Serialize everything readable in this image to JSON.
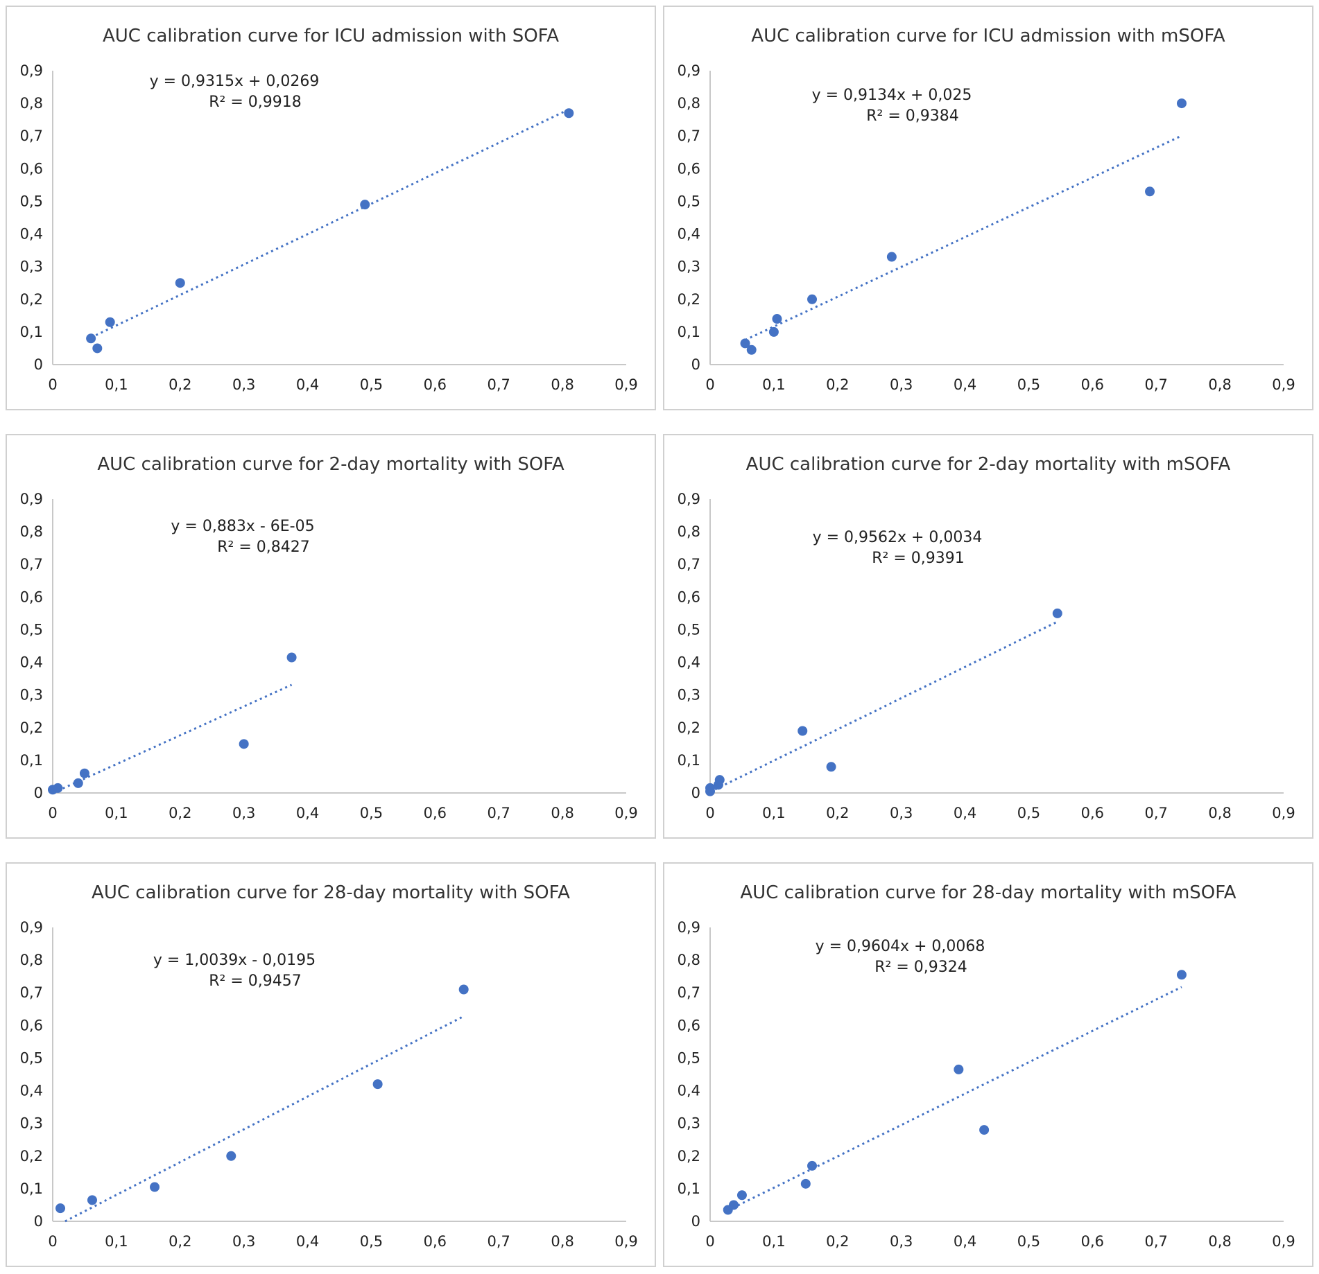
{
  "colors": {
    "marker": "#4472c4",
    "trend": "#4472c4",
    "axis": "#c8c8c8",
    "border": "#d0d0d0"
  },
  "chart_data": [
    {
      "type": "scatter",
      "title": "AUC calibration curve for ICU admission with SOFA",
      "equation": "y = 0,9315x + 0,0269",
      "r_squared": "R² = 0,9918",
      "xlim": [
        0,
        0.9
      ],
      "ylim": [
        0,
        0.9
      ],
      "x_ticks": [
        "0",
        "0,1",
        "0,2",
        "0,3",
        "0,4",
        "0,5",
        "0,6",
        "0,7",
        "0,8",
        "0,9"
      ],
      "y_ticks": [
        "0",
        "0,1",
        "0,2",
        "0,3",
        "0,4",
        "0,5",
        "0,6",
        "0,7",
        "0,8",
        "0,9"
      ],
      "trendline": {
        "slope": 0.9315,
        "intercept": 0.0269,
        "x_range": [
          0.06,
          0.81
        ]
      },
      "points": [
        {
          "x": 0.06,
          "y": 0.08
        },
        {
          "x": 0.07,
          "y": 0.05
        },
        {
          "x": 0.09,
          "y": 0.13
        },
        {
          "x": 0.2,
          "y": 0.25
        },
        {
          "x": 0.49,
          "y": 0.49
        },
        {
          "x": 0.81,
          "y": 0.77
        }
      ]
    },
    {
      "type": "scatter",
      "title": "AUC calibration curve for ICU admission with mSOFA",
      "equation": "y = 0,9134x + 0,025",
      "r_squared": "R² = 0,9384",
      "xlim": [
        0,
        0.9
      ],
      "ylim": [
        0,
        0.9
      ],
      "x_ticks": [
        "0",
        "0,1",
        "0,2",
        "0,3",
        "0,4",
        "0,5",
        "0,6",
        "0,7",
        "0,8",
        "0,9"
      ],
      "y_ticks": [
        "0",
        "0,1",
        "0,2",
        "0,3",
        "0,4",
        "0,5",
        "0,6",
        "0,7",
        "0,8",
        "0,9"
      ],
      "trendline": {
        "slope": 0.9134,
        "intercept": 0.025,
        "x_range": [
          0.055,
          0.74
        ]
      },
      "points": [
        {
          "x": 0.055,
          "y": 0.065
        },
        {
          "x": 0.065,
          "y": 0.045
        },
        {
          "x": 0.1,
          "y": 0.1
        },
        {
          "x": 0.105,
          "y": 0.14
        },
        {
          "x": 0.16,
          "y": 0.2
        },
        {
          "x": 0.285,
          "y": 0.33
        },
        {
          "x": 0.69,
          "y": 0.53
        },
        {
          "x": 0.74,
          "y": 0.8
        }
      ]
    },
    {
      "type": "scatter",
      "title": "AUC calibration curve for 2-day mortality with SOFA",
      "equation": "y = 0,883x - 6E-05",
      "r_squared": "R² = 0,8427",
      "xlim": [
        0,
        0.9
      ],
      "ylim": [
        0,
        0.9
      ],
      "x_ticks": [
        "0",
        "0,1",
        "0,2",
        "0,3",
        "0,4",
        "0,5",
        "0,6",
        "0,7",
        "0,8",
        "0,9"
      ],
      "y_ticks": [
        "0",
        "0,1",
        "0,2",
        "0,3",
        "0,4",
        "0,5",
        "0,6",
        "0,7",
        "0,8",
        "0,9"
      ],
      "trendline": {
        "slope": 0.883,
        "intercept": -6e-05,
        "x_range": [
          0,
          0.375
        ]
      },
      "points": [
        {
          "x": 0.0,
          "y": 0.01
        },
        {
          "x": 0.008,
          "y": 0.015
        },
        {
          "x": 0.04,
          "y": 0.03
        },
        {
          "x": 0.05,
          "y": 0.06
        },
        {
          "x": 0.3,
          "y": 0.15
        },
        {
          "x": 0.375,
          "y": 0.415
        }
      ]
    },
    {
      "type": "scatter",
      "title": "AUC calibration curve for 2-day mortality with mSOFA",
      "equation": "y = 0,9562x + 0,0034",
      "r_squared": "R² = 0,9391",
      "xlim": [
        0,
        0.9
      ],
      "ylim": [
        0,
        0.9
      ],
      "x_ticks": [
        "0",
        "0,1",
        "0,2",
        "0,3",
        "0,4",
        "0,5",
        "0,6",
        "0,7",
        "0,8",
        "0,9"
      ],
      "y_ticks": [
        "0",
        "0,1",
        "0,2",
        "0,3",
        "0,4",
        "0,5",
        "0,6",
        "0,7",
        "0,8",
        "0,9"
      ],
      "trendline": {
        "slope": 0.9562,
        "intercept": 0.0034,
        "x_range": [
          0,
          0.545
        ]
      },
      "points": [
        {
          "x": 0.0,
          "y": 0.005
        },
        {
          "x": 0.0,
          "y": 0.015
        },
        {
          "x": 0.013,
          "y": 0.025
        },
        {
          "x": 0.015,
          "y": 0.04
        },
        {
          "x": 0.145,
          "y": 0.19
        },
        {
          "x": 0.19,
          "y": 0.08
        },
        {
          "x": 0.545,
          "y": 0.55
        }
      ]
    },
    {
      "type": "scatter",
      "title": "AUC calibration curve for 28-day mortality with SOFA",
      "equation": "y = 1,0039x - 0,0195",
      "r_squared": "R² = 0,9457",
      "xlim": [
        0,
        0.9
      ],
      "ylim": [
        0,
        0.9
      ],
      "x_ticks": [
        "0",
        "0,1",
        "0,2",
        "0,3",
        "0,4",
        "0,5",
        "0,6",
        "0,7",
        "0,8",
        "0,9"
      ],
      "y_ticks": [
        "0",
        "0,1",
        "0,2",
        "0,3",
        "0,4",
        "0,5",
        "0,6",
        "0,7",
        "0,8",
        "0,9"
      ],
      "trendline": {
        "slope": 1.0039,
        "intercept": -0.0195,
        "x_range": [
          0.0195,
          0.645
        ]
      },
      "points": [
        {
          "x": 0.012,
          "y": 0.04
        },
        {
          "x": 0.062,
          "y": 0.065
        },
        {
          "x": 0.16,
          "y": 0.105
        },
        {
          "x": 0.28,
          "y": 0.2
        },
        {
          "x": 0.51,
          "y": 0.42
        },
        {
          "x": 0.645,
          "y": 0.71
        }
      ]
    },
    {
      "type": "scatter",
      "title": "AUC calibration curve for 28-day mortality with mSOFA",
      "equation": "y = 0,9604x + 0,0068",
      "r_squared": "R² = 0,9324",
      "xlim": [
        0,
        0.9
      ],
      "ylim": [
        0,
        0.9
      ],
      "x_ticks": [
        "0",
        "0,1",
        "0,2",
        "0,3",
        "0,4",
        "0,5",
        "0,6",
        "0,7",
        "0,8",
        "0,9"
      ],
      "y_ticks": [
        "0",
        "0,1",
        "0,2",
        "0,3",
        "0,4",
        "0,5",
        "0,6",
        "0,7",
        "0,8",
        "0,9"
      ],
      "trendline": {
        "slope": 0.9604,
        "intercept": 0.0068,
        "x_range": [
          0.028,
          0.74
        ]
      },
      "points": [
        {
          "x": 0.028,
          "y": 0.035
        },
        {
          "x": 0.037,
          "y": 0.05
        },
        {
          "x": 0.05,
          "y": 0.08
        },
        {
          "x": 0.15,
          "y": 0.115
        },
        {
          "x": 0.16,
          "y": 0.17
        },
        {
          "x": 0.39,
          "y": 0.465
        },
        {
          "x": 0.43,
          "y": 0.28
        },
        {
          "x": 0.74,
          "y": 0.755
        }
      ]
    }
  ]
}
